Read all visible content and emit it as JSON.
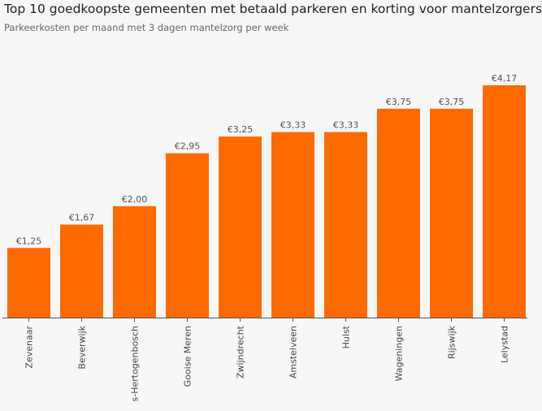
{
  "chart_data": {
    "type": "bar",
    "title": "Top 10 goedkoopste gemeenten met betaald parkeren en korting voor mantelzorgers",
    "subtitle": "Parkeerkosten per maand met 3 dagen mantelzorg per week",
    "categories": [
      "Zevenaar",
      "Beverwijk",
      "s-Hertogenbosch",
      "Gooise Meren",
      "Zwijndrecht",
      "Amstelveen",
      "Hulst",
      "Wageningen",
      "Rijswijk",
      "Lelystad"
    ],
    "values": [
      1.25,
      1.67,
      2.0,
      2.95,
      3.25,
      3.33,
      3.33,
      3.75,
      3.75,
      4.17
    ],
    "labels": [
      "€1,25",
      "€1,67",
      "€2,00",
      "€2,95",
      "€3,25",
      "€3,33",
      "€3,33",
      "€3,75",
      "€3,75",
      "€4,17"
    ],
    "xlabel": "",
    "ylabel": "",
    "ylim": [
      0,
      4.17
    ],
    "grid": false,
    "bar_color": "#ff6a00",
    "axis_color": "#555555"
  }
}
